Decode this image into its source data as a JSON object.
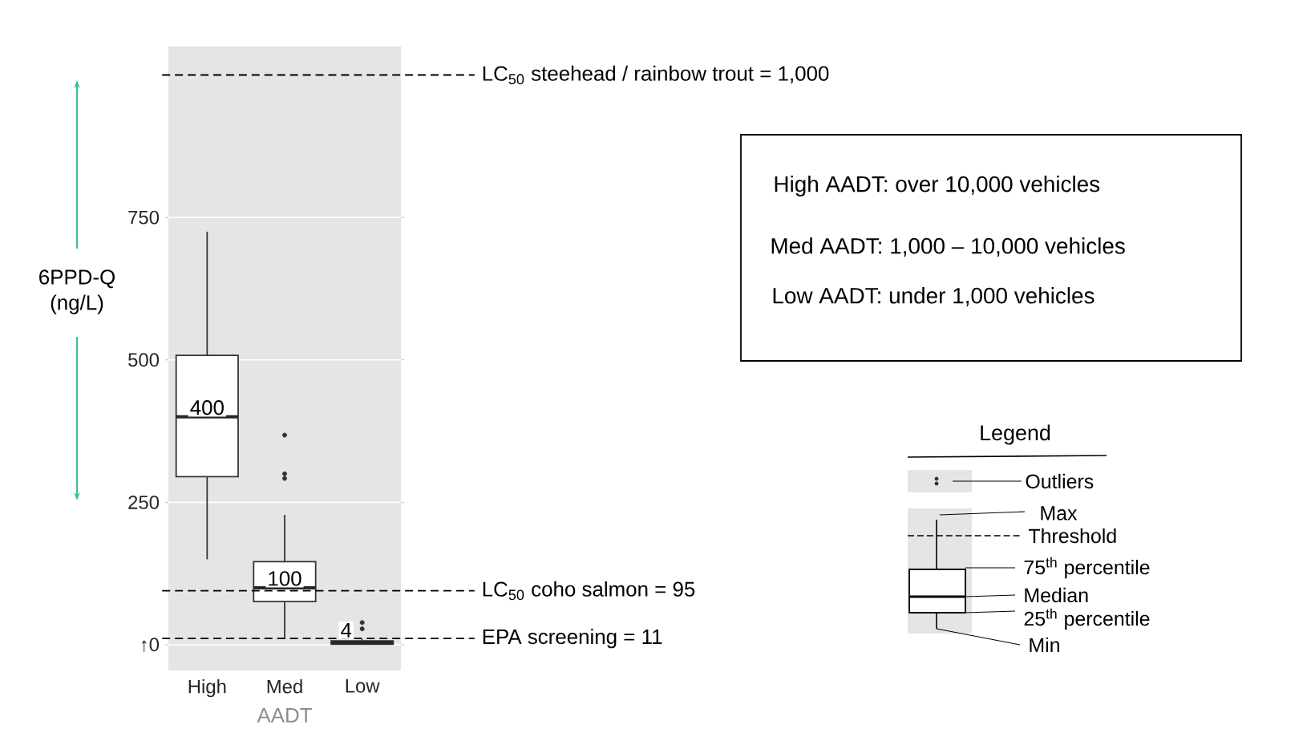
{
  "chart_data": {
    "type": "box",
    "categories": [
      "High",
      "Med",
      "Low"
    ],
    "xlabel": "AADT",
    "ylabel": "6PPD-Q (ng/L)",
    "ylim": [
      -45,
      1050
    ],
    "yticks": [
      {
        "value": 0,
        "label": "↑0"
      },
      250,
      500,
      750
    ],
    "grid": "y",
    "boxes": [
      {
        "low": 150,
        "q1": 295,
        "median": 400,
        "q3": 508,
        "high": 725
      },
      {
        "low": 10,
        "q1": 76,
        "median": 100,
        "q3": 146,
        "high": 228,
        "outliers": [
          292,
          300,
          368
        ]
      },
      {
        "low": 0,
        "q1": 1,
        "median": 4,
        "q3": 7,
        "high": 10,
        "outliers": [
          28,
          39
        ]
      }
    ],
    "ref_lines": [
      {
        "axis": "y",
        "value": 1000,
        "label": "LC$_{50}$ steehead / rainbow trout = 1,000",
        "line_style": "dashed"
      },
      {
        "axis": "y",
        "value": 95,
        "label": "LC$_{50}$ coho salmon = 95",
        "line_style": "dashed"
      },
      {
        "axis": "y",
        "value": 11,
        "label": "EPA screening = 11",
        "line_style": "dashed"
      }
    ],
    "legend_title": "Legend",
    "annotations": [
      "High AADT: over 10,000 vehicles",
      "Med AADT: 1,000 – 10,000 vehicles",
      "Low AADT: under 1,000 vehicles",
      {
        "text": "400",
        "x": "High",
        "y": 400
      },
      {
        "text": "100",
        "x": "Med",
        "y": 100
      },
      {
        "text": "4",
        "x": "Low",
        "y": 4
      },
      "Outliers",
      "Max",
      "Threshold",
      "75$^{th}$  percentile",
      "Median",
      "25$^{th}$  percentile",
      "Min"
    ]
  }
}
